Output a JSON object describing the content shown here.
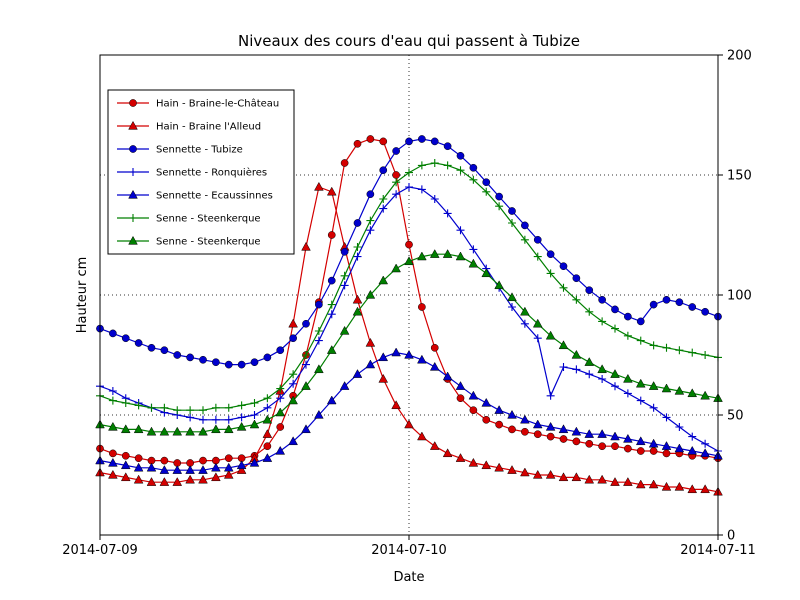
{
  "chart_data": {
    "type": "line",
    "title": "Niveaux des cours d'eau qui passent à Tubize",
    "xlabel": "Date",
    "ylabel": "Hauteur cm",
    "x_unit": "hours since 2014-07-09 00:00, hourly points",
    "xlim": [
      0,
      48
    ],
    "ylim": [
      0,
      200
    ],
    "x_tick_positions": [
      0,
      24,
      48
    ],
    "x_tick_labels": [
      "2014-07-09",
      "2014-07-10",
      "2014-07-11"
    ],
    "y_ticks": [
      0,
      50,
      100,
      150,
      200
    ],
    "y_tick_label_side": "right",
    "grid": {
      "style": "dotted",
      "x_values": [
        24
      ],
      "y_values": [
        50,
        100,
        150
      ]
    },
    "legend_position": "upper left",
    "series": [
      {
        "name": "Hain - Braine-le-Château",
        "color": "#d40000",
        "marker": "circle",
        "values": [
          36,
          34,
          33,
          32,
          31,
          31,
          30,
          30,
          31,
          31,
          32,
          32,
          33,
          37,
          45,
          58,
          75,
          97,
          125,
          155,
          163,
          165,
          164,
          150,
          121,
          95,
          78,
          65,
          57,
          52,
          48,
          46,
          44,
          43,
          42,
          41,
          40,
          39,
          38,
          37,
          37,
          36,
          35,
          35,
          34,
          34,
          33,
          33,
          32
        ]
      },
      {
        "name": "Hain - Braine l'Alleud",
        "color": "#d40000",
        "marker": "triangle",
        "values": [
          26,
          25,
          24,
          23,
          22,
          22,
          22,
          23,
          23,
          24,
          25,
          27,
          32,
          42,
          60,
          88,
          120,
          145,
          143,
          120,
          98,
          80,
          65,
          54,
          46,
          41,
          37,
          34,
          32,
          30,
          29,
          28,
          27,
          26,
          25,
          25,
          24,
          24,
          23,
          23,
          22,
          22,
          21,
          21,
          20,
          20,
          19,
          19,
          18
        ]
      },
      {
        "name": "Sennette - Tubize",
        "color": "#0000cd",
        "marker": "circle",
        "values": [
          86,
          84,
          82,
          80,
          78,
          77,
          75,
          74,
          73,
          72,
          71,
          71,
          72,
          74,
          77,
          82,
          88,
          96,
          106,
          118,
          130,
          142,
          152,
          160,
          164,
          165,
          164,
          162,
          158,
          153,
          147,
          141,
          135,
          129,
          123,
          117,
          112,
          107,
          102,
          98,
          94,
          91,
          89,
          96,
          98,
          97,
          95,
          93,
          91
        ]
      },
      {
        "name": "Sennette - Ronquières",
        "color": "#0000cd",
        "marker": "plus",
        "values": [
          62,
          60,
          57,
          55,
          53,
          51,
          50,
          49,
          48,
          48,
          48,
          49,
          50,
          53,
          57,
          63,
          71,
          81,
          92,
          104,
          116,
          127,
          136,
          142,
          145,
          144,
          140,
          134,
          127,
          119,
          111,
          103,
          95,
          88,
          82,
          58,
          70,
          69,
          67,
          65,
          62,
          59,
          56,
          53,
          49,
          45,
          41,
          38,
          35
        ]
      },
      {
        "name": "Sennette - Ecaussinnes",
        "color": "#0000cd",
        "marker": "triangle",
        "values": [
          31,
          30,
          29,
          28,
          28,
          27,
          27,
          27,
          27,
          28,
          28,
          29,
          30,
          32,
          35,
          39,
          44,
          50,
          56,
          62,
          67,
          71,
          74,
          76,
          75,
          73,
          70,
          66,
          62,
          58,
          55,
          52,
          50,
          48,
          46,
          45,
          44,
          43,
          42,
          42,
          41,
          40,
          39,
          38,
          37,
          36,
          35,
          34,
          33
        ]
      },
      {
        "name": "Senne - Steenkerque",
        "color": "#007f00",
        "marker": "plus",
        "values": [
          58,
          56,
          55,
          54,
          53,
          53,
          52,
          52,
          52,
          53,
          53,
          54,
          55,
          57,
          61,
          67,
          75,
          85,
          96,
          108,
          120,
          131,
          140,
          147,
          151,
          154,
          155,
          154,
          152,
          148,
          143,
          137,
          130,
          123,
          116,
          109,
          103,
          98,
          93,
          89,
          86,
          83,
          81,
          79,
          78,
          77,
          76,
          75,
          74
        ]
      },
      {
        "name": "Senne - Steenkerque",
        "color": "#007f00",
        "marker": "triangle",
        "values": [
          46,
          45,
          44,
          44,
          43,
          43,
          43,
          43,
          43,
          44,
          44,
          45,
          46,
          48,
          51,
          56,
          62,
          69,
          77,
          85,
          93,
          100,
          106,
          111,
          114,
          116,
          117,
          117,
          116,
          113,
          109,
          104,
          99,
          93,
          88,
          83,
          79,
          75,
          72,
          69,
          67,
          65,
          63,
          62,
          61,
          60,
          59,
          58,
          57
        ]
      }
    ]
  }
}
